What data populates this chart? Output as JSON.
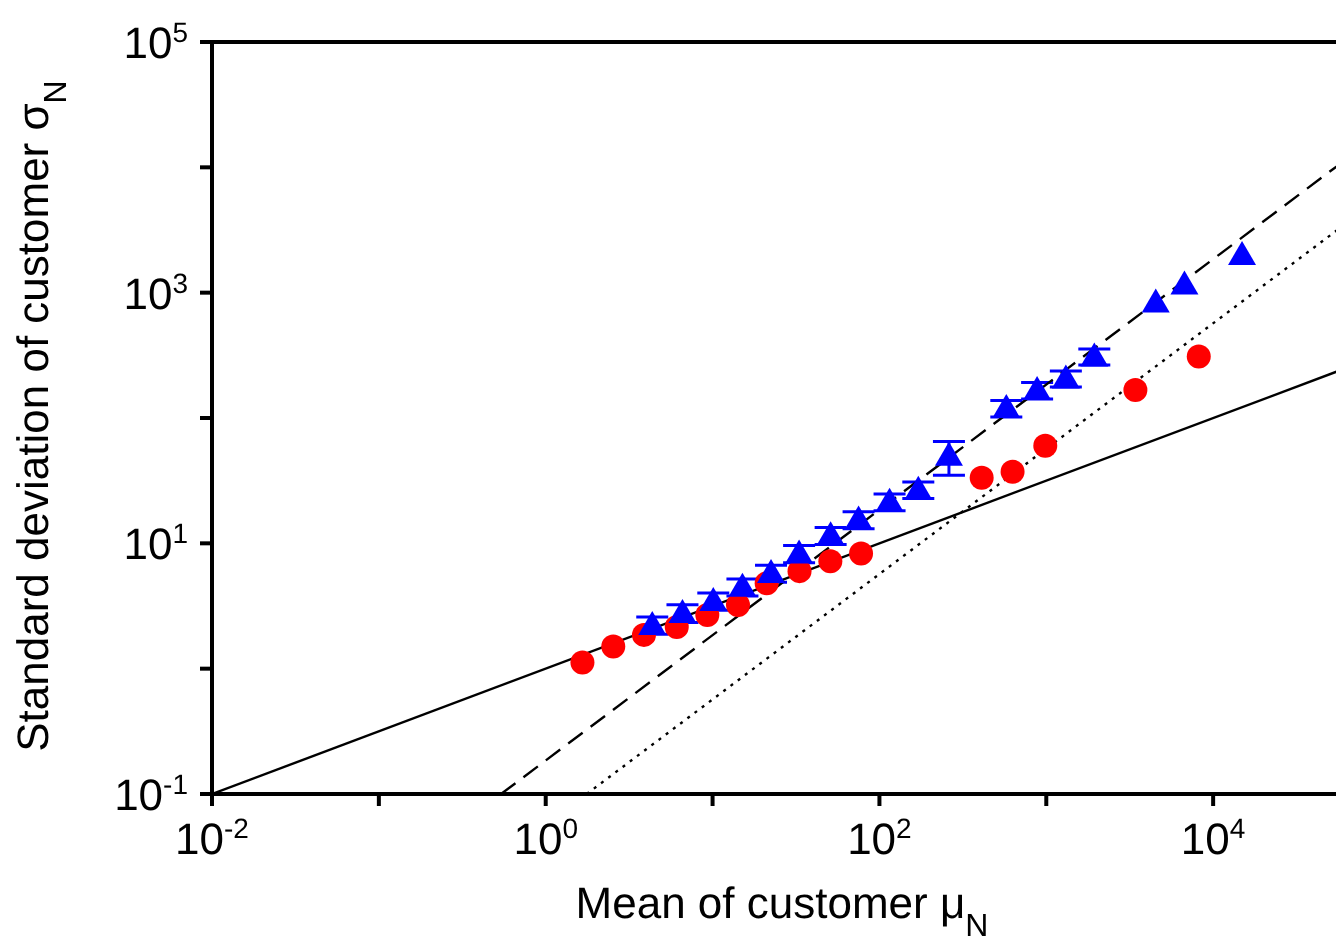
{
  "chart_data": {
    "type": "scatter",
    "xlabel": "Mean of customer μ$_{N}$",
    "ylabel": "Standard deviation of customer σ$_{N}$",
    "log": "xy",
    "grid": false,
    "legend": false,
    "xlim": [
      0.01,
      100000
    ],
    "ylim": [
      0.1,
      100000
    ],
    "xticks": [
      {
        "value": 0.01,
        "label": "10$^{-2}$"
      },
      {
        "value": 0.1,
        "label": null
      },
      {
        "value": 1,
        "label": "10$^{0}$"
      },
      {
        "value": 10,
        "label": null
      },
      {
        "value": 100,
        "label": "10$^{2}$"
      },
      {
        "value": 1000,
        "label": null
      },
      {
        "value": 10000,
        "label": "10$^{4}$"
      }
    ],
    "yticks": [
      {
        "value": 0.1,
        "label": "10$^{-1}$"
      },
      {
        "value": 1,
        "label": null
      },
      {
        "value": 10,
        "label": "10$^{1}$"
      },
      {
        "value": 100,
        "label": null
      },
      {
        "value": 1000,
        "label": "10$^{3}$"
      },
      {
        "value": 10000,
        "label": null
      },
      {
        "value": 100000,
        "label": "10$^{5}$"
      }
    ],
    "series": [
      {
        "type": "line",
        "line_style": "solid",
        "color": "#000000",
        "x": [
          0.01,
          100000
        ],
        "values": [
          0.1,
          316
        ]
      },
      {
        "type": "line",
        "line_style": "dashed",
        "color": "#000000",
        "x": [
          0.54,
          100000
        ],
        "values": [
          0.1,
          18500
        ]
      },
      {
        "type": "line",
        "line_style": "dotted",
        "color": "#000000",
        "x": [
          1.76,
          100000
        ],
        "values": [
          0.1,
          5700
        ]
      },
      {
        "marker": "circle",
        "color": "#ff0000",
        "x": [
          1.66,
          2.54,
          3.88,
          6.1,
          9.3,
          14.2,
          21.1,
          33.2,
          50.8,
          77.6,
          410,
          628,
          986,
          3420,
          8200
        ],
        "values": [
          1.12,
          1.5,
          1.86,
          2.15,
          2.68,
          3.22,
          4.8,
          6.0,
          7.2,
          8.3,
          33.4,
          37.2,
          60,
          167,
          310
        ]
      },
      {
        "marker": "triangle",
        "color": "#0000ff",
        "x": [
          4.35,
          6.6,
          10.1,
          15.1,
          22.4,
          33,
          51,
          75,
          115,
          171,
          261,
          576,
          881,
          1310,
          1940,
          4530,
          6730,
          14900
        ],
        "values": [
          2.23,
          2.78,
          3.47,
          4.5,
          5.8,
          8.3,
          11.6,
          15.5,
          21.5,
          26.8,
          50,
          120,
          167,
          207,
          310,
          834,
          1160,
          2000
        ],
        "errors": [
          0.35,
          0.45,
          0.55,
          0.7,
          0.9,
          1.3,
          1.8,
          2.4,
          3.3,
          4,
          15,
          18,
          25,
          30,
          45,
          null,
          null,
          null
        ]
      }
    ]
  }
}
